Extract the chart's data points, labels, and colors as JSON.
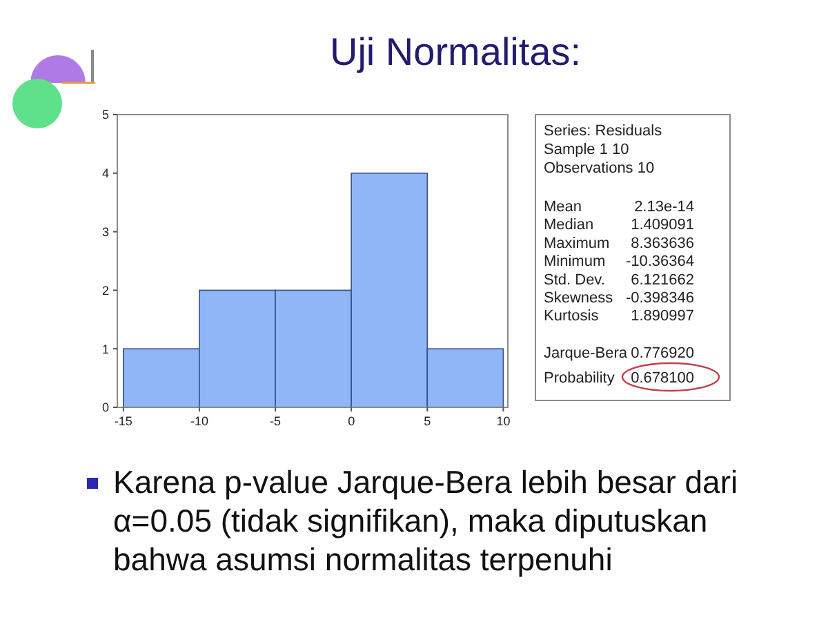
{
  "chart_data": {
    "type": "histogram",
    "title": "Uji Normalitas:",
    "bins": [
      -15,
      -10,
      -5,
      0,
      5,
      10
    ],
    "values": [
      1,
      2,
      2,
      4,
      1
    ],
    "color": "#91b6f7",
    "xlim": [
      -15.4,
      10.3
    ],
    "xticks": [
      -15,
      -10,
      -5,
      0,
      5,
      10
    ],
    "ylim": [
      0,
      5
    ],
    "yticks": [
      0,
      1,
      2,
      3,
      4,
      5
    ],
    "annotations": [
      "Series: Residuals",
      "Sample 1 10",
      "Observations 10",
      "Mean",
      "2.13e-14",
      "Median",
      "1.409091",
      "Maximum",
      "8.363636",
      "Minimum",
      "-10.36364",
      "Std. Dev.",
      "6.121662",
      "Skewness",
      "-0.398346",
      "Kurtosis",
      "1.890997",
      "Jarque-Bera",
      "0.776920",
      "Probability",
      "0.678100",
      "Karena p-value Jarque-Bera lebih besar dari α=0.05 (tidak signifikan), maka diputuskan bahwa asumsi normalitas terpenuhi"
    ]
  }
}
